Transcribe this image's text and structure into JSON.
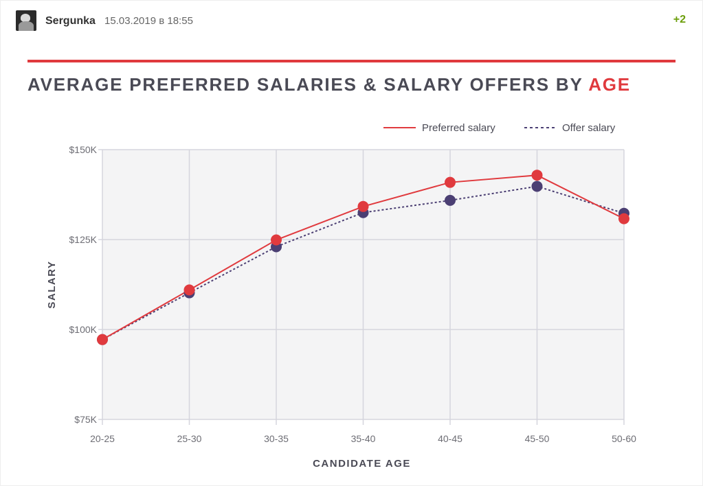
{
  "comment": {
    "username": "Sergunka",
    "timestamp": "15.03.2019 в 18:55",
    "rating": "+2",
    "avatar_icon": "user-avatar"
  },
  "colors": {
    "accent": "#e03a3e",
    "offer": "#4b3f73",
    "grid_bg": "#f4f4f5",
    "grid_line": "#d5d5dd"
  },
  "chart_data": {
    "type": "line",
    "title_main": "AVERAGE PREFERRED SALARIES & SALARY OFFERS BY ",
    "title_accent": "AGE",
    "xlabel": "CANDIDATE AGE",
    "ylabel": "SALARY",
    "categories": [
      "20-25",
      "25-30",
      "30-35",
      "35-40",
      "40-45",
      "45-50",
      "50-60"
    ],
    "y_ticks": [
      {
        "value": 75000,
        "label": "$75K"
      },
      {
        "value": 100000,
        "label": "$100K"
      },
      {
        "value": 125000,
        "label": "$125K"
      },
      {
        "value": 150000,
        "label": "$150K"
      }
    ],
    "ylim": [
      75000,
      150000
    ],
    "grid": true,
    "legend_position": "top-right",
    "series": [
      {
        "name": "Preferred salary",
        "style": "solid",
        "color": "#e03a3e",
        "values": [
          97200,
          111000,
          124900,
          134200,
          140900,
          142900,
          130800
        ]
      },
      {
        "name": "Offer salary",
        "style": "dashed",
        "color": "#4b3f73",
        "values": [
          97200,
          110200,
          123000,
          132500,
          135900,
          139800,
          132300
        ]
      }
    ]
  }
}
